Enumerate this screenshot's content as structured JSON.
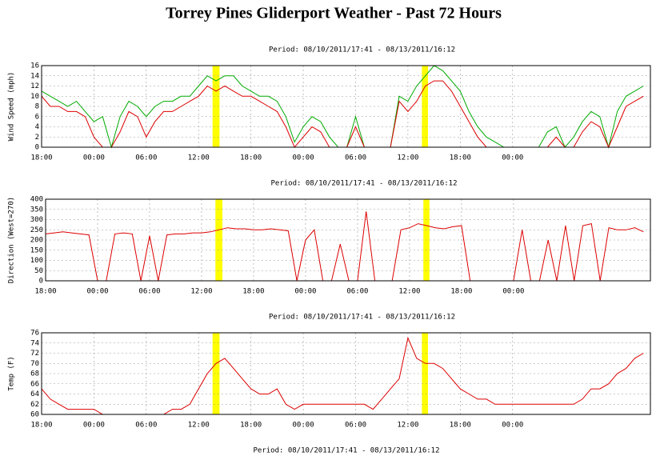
{
  "title": "Torrey Pines Gliderport Weather - Past 72 Hours",
  "chart_data": [
    {
      "type": "line",
      "subtitle": "Period: 08/10/2011/17:41 - 08/13/2011/16:12",
      "y_label": "Wind Speed (mph)",
      "x": [
        0,
        1,
        2,
        3,
        4,
        5,
        6,
        7,
        8,
        9,
        10,
        11,
        12,
        13,
        14,
        15,
        16,
        17,
        18,
        19,
        20,
        21,
        22,
        23,
        24,
        25,
        26,
        27,
        28,
        29,
        30,
        31,
        32,
        33,
        34,
        35,
        36,
        37,
        38,
        39,
        40,
        41,
        42,
        43,
        44,
        45,
        46,
        47,
        48,
        49,
        50,
        51,
        52,
        53,
        54,
        55,
        56,
        57,
        58,
        59,
        60,
        61,
        62,
        63,
        64,
        65,
        66,
        67,
        68,
        69
      ],
      "series": [
        {
          "color": "#00aa00",
          "values": [
            11,
            10,
            9,
            8,
            9,
            7,
            5,
            6,
            0,
            6,
            9,
            8,
            6,
            8,
            9,
            9,
            10,
            10,
            12,
            14,
            13,
            14,
            14,
            12,
            11,
            10,
            10,
            9,
            6,
            1,
            4,
            6,
            5,
            2,
            0,
            0,
            6,
            0,
            0,
            0,
            0,
            10,
            9,
            12,
            14,
            16,
            15,
            13,
            11,
            7,
            4,
            2,
            1,
            0,
            0,
            0,
            0,
            0,
            3,
            4,
            0,
            2,
            5,
            7,
            6,
            0,
            7,
            10,
            11,
            12
          ]
        },
        {
          "color": "#dd0000",
          "values": [
            10,
            8,
            8,
            7,
            7,
            6,
            2,
            0,
            0,
            3,
            7,
            6,
            2,
            5,
            7,
            7,
            8,
            9,
            10,
            12,
            11,
            12,
            11,
            10,
            10,
            9,
            8,
            7,
            4,
            0,
            2,
            4,
            3,
            0,
            0,
            0,
            4,
            0,
            0,
            0,
            0,
            9,
            7,
            9,
            12,
            13,
            13,
            11,
            8,
            5,
            2,
            0,
            0,
            0,
            0,
            0,
            0,
            0,
            0,
            2,
            0,
            0,
            3,
            5,
            4,
            0,
            4,
            8,
            9,
            10
          ]
        }
      ],
      "xlim": [
        0,
        69.8
      ],
      "ylim": [
        0,
        16
      ],
      "yticks": [
        0,
        2,
        4,
        6,
        8,
        10,
        12,
        14,
        16
      ],
      "xticks": [
        {
          "value": 0,
          "label": "18:00"
        },
        {
          "value": 6,
          "label": "00:00"
        },
        {
          "value": 12,
          "label": "06:00"
        },
        {
          "value": 18,
          "label": "12:00"
        },
        {
          "value": 24,
          "label": "18:00"
        },
        {
          "value": 30,
          "label": "00:00"
        },
        {
          "value": 36,
          "label": "06:00"
        },
        {
          "value": 42,
          "label": "12:00"
        },
        {
          "value": 48,
          "label": "18:00"
        },
        {
          "value": 54,
          "label": "00:00"
        }
      ],
      "highlights": [
        [
          19.6,
          20.4
        ],
        [
          43.6,
          44.3
        ]
      ],
      "highlight_color": "#ffff00",
      "grid": true
    },
    {
      "type": "line",
      "subtitle": "Period: 08/10/2011/17:41 - 08/13/2011/16:12",
      "y_label": "Direction (West=270)",
      "x": [
        0,
        1,
        2,
        3,
        4,
        5,
        6,
        7,
        8,
        9,
        10,
        11,
        12,
        13,
        14,
        15,
        16,
        17,
        18,
        19,
        20,
        21,
        22,
        23,
        24,
        25,
        26,
        27,
        28,
        29,
        30,
        31,
        32,
        33,
        34,
        35,
        36,
        37,
        38,
        39,
        40,
        41,
        42,
        43,
        44,
        45,
        46,
        47,
        48,
        49,
        50,
        51,
        52,
        53,
        54,
        55,
        56,
        57,
        58,
        59,
        60,
        61,
        62,
        63,
        64,
        65,
        66,
        67,
        68,
        69
      ],
      "series": [
        {
          "color": "#dd0000",
          "values": [
            230,
            235,
            240,
            235,
            230,
            225,
            0,
            0,
            230,
            235,
            230,
            0,
            220,
            0,
            225,
            230,
            230,
            235,
            235,
            240,
            250,
            260,
            255,
            255,
            250,
            250,
            255,
            250,
            245,
            0,
            200,
            250,
            0,
            0,
            180,
            0,
            0,
            340,
            0,
            0,
            0,
            250,
            260,
            280,
            270,
            260,
            255,
            265,
            270,
            0,
            0,
            0,
            0,
            0,
            0,
            250,
            0,
            0,
            200,
            0,
            270,
            0,
            270,
            280,
            0,
            260,
            250,
            250,
            260,
            240
          ]
        }
      ],
      "xlim": [
        0,
        69.8
      ],
      "ylim": [
        0,
        400
      ],
      "yticks": [
        0,
        50,
        100,
        150,
        200,
        250,
        300,
        350,
        400
      ],
      "xticks": [
        {
          "value": 0,
          "label": "18:00"
        },
        {
          "value": 6,
          "label": "00:00"
        },
        {
          "value": 12,
          "label": "06:00"
        },
        {
          "value": 18,
          "label": "12:00"
        },
        {
          "value": 24,
          "label": "18:00"
        },
        {
          "value": 30,
          "label": "00:00"
        },
        {
          "value": 36,
          "label": "06:00"
        },
        {
          "value": 42,
          "label": "12:00"
        },
        {
          "value": 48,
          "label": "18:00"
        },
        {
          "value": 54,
          "label": "00:00"
        }
      ],
      "highlights": [
        [
          19.6,
          20.4
        ],
        [
          43.6,
          44.3
        ]
      ],
      "highlight_color": "#ffff00",
      "grid": true
    },
    {
      "type": "line",
      "subtitle": "Period: 08/10/2011/17:41 - 08/13/2011/16:12",
      "y_label": "Temp (F)",
      "x": [
        0,
        1,
        2,
        3,
        4,
        5,
        6,
        7,
        8,
        9,
        10,
        11,
        12,
        13,
        14,
        15,
        16,
        17,
        18,
        19,
        20,
        21,
        22,
        23,
        24,
        25,
        26,
        27,
        28,
        29,
        30,
        31,
        32,
        33,
        34,
        35,
        36,
        37,
        38,
        39,
        40,
        41,
        42,
        43,
        44,
        45,
        46,
        47,
        48,
        49,
        50,
        51,
        52,
        53,
        54,
        55,
        56,
        57,
        58,
        59,
        60,
        61,
        62,
        63,
        64,
        65,
        66,
        67,
        68,
        69
      ],
      "series": [
        {
          "color": "#dd0000",
          "values": [
            65,
            63,
            62,
            61,
            61,
            61,
            61,
            60,
            60,
            60,
            60,
            60,
            60,
            60,
            60,
            61,
            61,
            62,
            65,
            68,
            70,
            71,
            69,
            67,
            65,
            64,
            64,
            65,
            62,
            61,
            62,
            62,
            62,
            62,
            62,
            62,
            62,
            62,
            61,
            63,
            65,
            67,
            75,
            71,
            70,
            70,
            69,
            67,
            65,
            64,
            63,
            63,
            62,
            62,
            62,
            62,
            62,
            62,
            62,
            62,
            62,
            62,
            63,
            65,
            65,
            66,
            68,
            69,
            71,
            72
          ]
        }
      ],
      "xlim": [
        0,
        69.8
      ],
      "ylim": [
        60,
        76
      ],
      "yticks": [
        60,
        62,
        64,
        66,
        68,
        70,
        72,
        74,
        76
      ],
      "xticks": [
        {
          "value": 0,
          "label": "18:00"
        },
        {
          "value": 6,
          "label": "00:00"
        },
        {
          "value": 12,
          "label": "06:00"
        },
        {
          "value": 18,
          "label": "12:00"
        },
        {
          "value": 24,
          "label": "18:00"
        },
        {
          "value": 30,
          "label": "00:00"
        },
        {
          "value": 36,
          "label": "06:00"
        },
        {
          "value": 42,
          "label": "12:00"
        },
        {
          "value": 48,
          "label": "18:00"
        },
        {
          "value": 54,
          "label": "00:00"
        }
      ],
      "highlights": [
        [
          19.6,
          20.4
        ],
        [
          43.6,
          44.3
        ]
      ],
      "highlight_color": "#ffff00",
      "grid": true
    }
  ],
  "footer": "Period: 08/10/2011/17:41 - 08/13/2011/16:12"
}
